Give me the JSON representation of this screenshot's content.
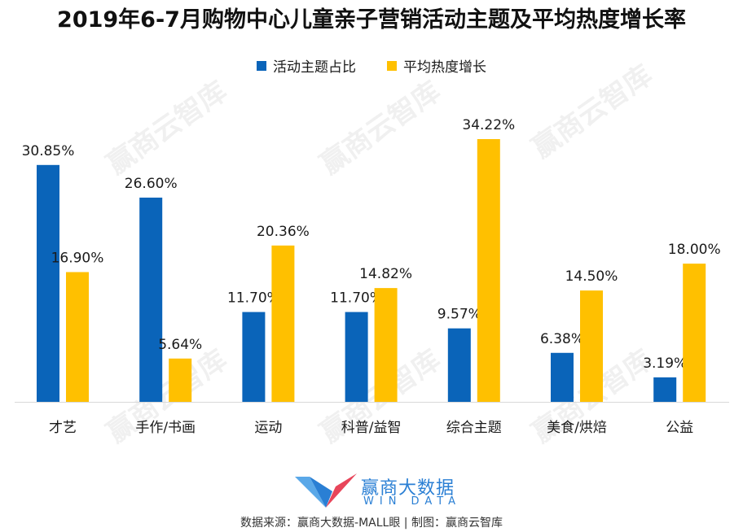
{
  "title": "2019年6-7月购物中心儿童亲子营销活动主题及平均热度增长率",
  "watermark": "赢商云智库",
  "logo": {
    "name": "赢商大数据",
    "sub": "WIN DATA"
  },
  "source": "数据来源：赢商大数据-MALL眼 | 制图：赢商云智库",
  "colors": {
    "series1": "#0a64b9",
    "series2": "#ffc000"
  },
  "chart_data": {
    "type": "bar",
    "categories": [
      "才艺",
      "手作/书画",
      "运动",
      "科普/益智",
      "综合主题",
      "美食/烘焙",
      "公益"
    ],
    "series": [
      {
        "name": "活动主题占比",
        "values": [
          30.85,
          26.6,
          11.7,
          11.7,
          9.57,
          6.38,
          3.19
        ],
        "labels": [
          "30.85%",
          "26.60%",
          "11.70%",
          "11.70%",
          "9.57%",
          "6.38%",
          "3.19%"
        ]
      },
      {
        "name": "平均热度增长",
        "values": [
          16.9,
          5.64,
          20.36,
          14.82,
          34.22,
          14.5,
          18.0
        ],
        "labels": [
          "16.90%",
          "5.64%",
          "20.36%",
          "14.82%",
          "34.22%",
          "14.50%",
          "18.00%"
        ]
      }
    ],
    "ylim": [
      0,
      34.22
    ],
    "grid": false,
    "legend_position": "top-center"
  }
}
